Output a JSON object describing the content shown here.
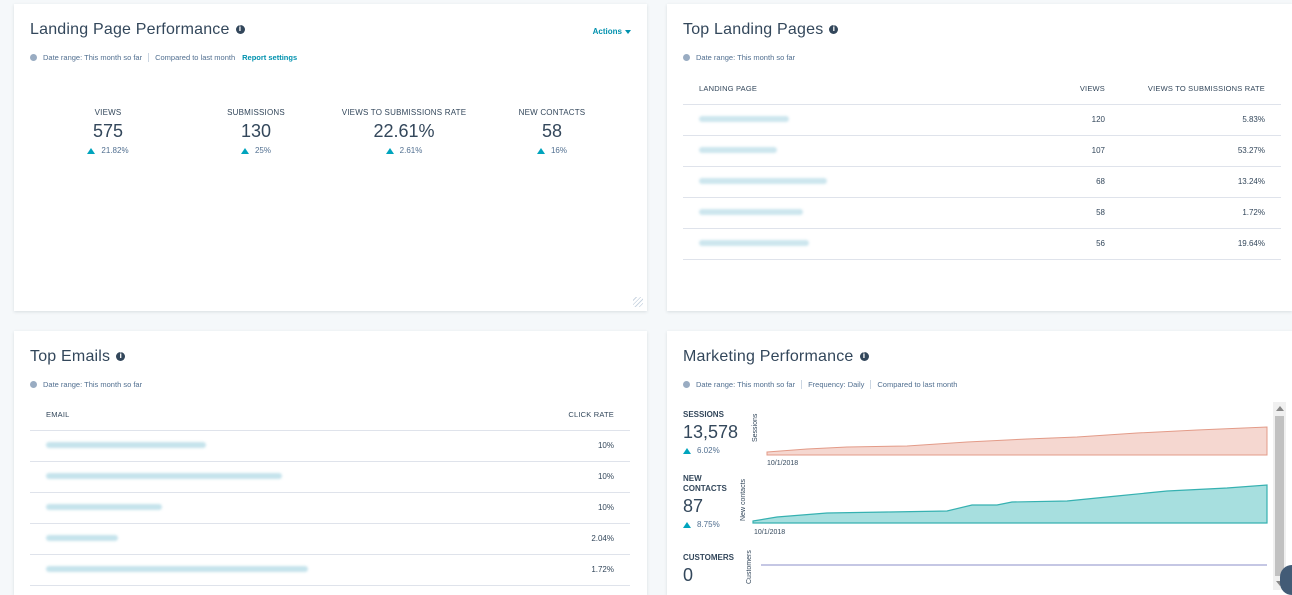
{
  "landing_performance": {
    "title": "Landing Page Performance",
    "actions_label": "Actions",
    "date_range": "Date range: This month so far",
    "compared": "Compared to last month",
    "report_settings": "Report settings",
    "kpis": [
      {
        "label": "VIEWS",
        "value": "575",
        "delta": "21.82%"
      },
      {
        "label": "SUBMISSIONS",
        "value": "130",
        "delta": "25%"
      },
      {
        "label": "VIEWS TO SUBMISSIONS RATE",
        "value": "22.61%",
        "delta": "2.61%"
      },
      {
        "label": "NEW CONTACTS",
        "value": "58",
        "delta": "16%"
      }
    ]
  },
  "top_landing_pages": {
    "title": "Top Landing Pages",
    "date_range": "Date range: This month so far",
    "columns": [
      "LANDING PAGE",
      "VIEWS",
      "VIEWS TO SUBMISSIONS RATE"
    ],
    "rows": [
      {
        "views": "120",
        "rate": "5.83%"
      },
      {
        "views": "107",
        "rate": "53.27%"
      },
      {
        "views": "68",
        "rate": "13.24%"
      },
      {
        "views": "58",
        "rate": "1.72%"
      },
      {
        "views": "56",
        "rate": "19.64%"
      }
    ]
  },
  "top_emails": {
    "title": "Top Emails",
    "date_range": "Date range: This month so far",
    "columns": [
      "EMAIL",
      "CLICK RATE"
    ],
    "rows": [
      {
        "click_rate": "10%"
      },
      {
        "click_rate": "10%"
      },
      {
        "click_rate": "10%"
      },
      {
        "click_rate": "2.04%"
      },
      {
        "click_rate": "1.72%"
      }
    ]
  },
  "marketing_performance": {
    "title": "Marketing Performance",
    "date_range": "Date range: This month so far",
    "frequency": "Frequency: Daily",
    "compared": "Compared to last month",
    "metrics": [
      {
        "label": "SESSIONS",
        "value": "13,578",
        "delta": "6.02%",
        "axis_label": "Sessions",
        "date": "10/1/2018"
      },
      {
        "label_line1": "NEW",
        "label_line2": "CONTACTS",
        "value": "87",
        "delta": "8.75%",
        "axis_label": "New contacts",
        "date": "10/1/2018"
      },
      {
        "label": "CUSTOMERS",
        "value": "0",
        "axis_label": "Customers"
      }
    ]
  },
  "colors": {
    "sessions": "#e9a797",
    "contacts": "#4fbfbf",
    "customers": "#8b8fc8",
    "accent": "#0091ae",
    "up": "#00a4bd"
  }
}
